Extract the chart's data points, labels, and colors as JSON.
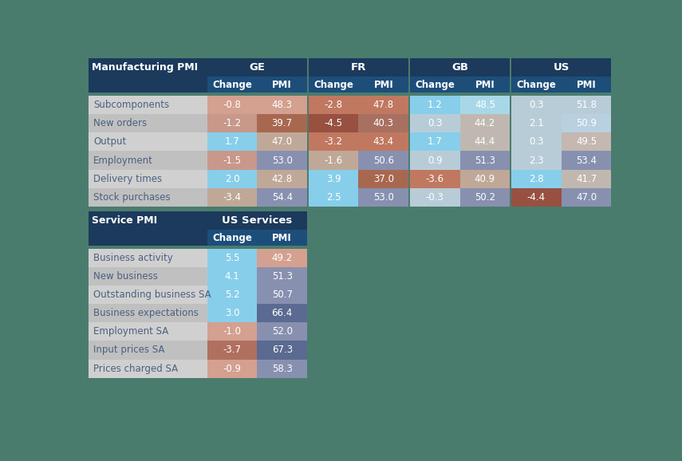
{
  "title1": "Manufacturing PMI",
  "title2": "Service PMI",
  "dark_blue": "#1b3a5c",
  "mid_blue": "#1d4e7a",
  "bg_color": "#4a7c6e",
  "row_label_text": "#4a6080",
  "light_gray": "#d0d0d0",
  "med_gray": "#c0c0c0",
  "mfg_groups": [
    "GE",
    "FR",
    "GB",
    "US"
  ],
  "mfg_rows": [
    {
      "label": "Subcomponents",
      "values": [
        "-0.8",
        "48.3",
        "-2.8",
        "47.8",
        "1.2",
        "48.5",
        "0.3",
        "51.8"
      ]
    },
    {
      "label": "New orders",
      "values": [
        "-1.2",
        "39.7",
        "-4.5",
        "40.3",
        "0.3",
        "44.2",
        "2.1",
        "50.9"
      ]
    },
    {
      "label": "Output",
      "values": [
        "1.7",
        "47.0",
        "-3.2",
        "43.4",
        "1.7",
        "44.4",
        "0.3",
        "49.5"
      ]
    },
    {
      "label": "Employment",
      "values": [
        "-1.5",
        "53.0",
        "-1.6",
        "50.6",
        "0.9",
        "51.3",
        "2.3",
        "53.4"
      ]
    },
    {
      "label": "Delivery times",
      "values": [
        "2.0",
        "42.8",
        "3.9",
        "37.0",
        "-3.6",
        "40.9",
        "2.8",
        "41.7"
      ]
    },
    {
      "label": "Stock purchases",
      "values": [
        "-3.4",
        "54.4",
        "2.5",
        "53.0",
        "-0.3",
        "50.2",
        "-4.4",
        "47.0"
      ]
    }
  ],
  "mfg_cell_colors": [
    [
      "#d4a090",
      "#d4a090",
      "#c07860",
      "#c07860",
      "#87ceeb",
      "#a8d8e8",
      "#b8ccd8",
      "#b8ccd8"
    ],
    [
      "#c8988a",
      "#a86850",
      "#985040",
      "#a87060",
      "#b8ccd8",
      "#c0b8b0",
      "#b8ccd8",
      "#b8d0e0"
    ],
    [
      "#87ceeb",
      "#c0a898",
      "#c07860",
      "#c07860",
      "#87ceeb",
      "#c0b8b0",
      "#b8ccd8",
      "#c4b8b0"
    ],
    [
      "#c8988a",
      "#8890b0",
      "#c0a898",
      "#8890b0",
      "#b8ccd8",
      "#8890b0",
      "#b8ccd8",
      "#8890b0"
    ],
    [
      "#87ceeb",
      "#c0a898",
      "#87ceeb",
      "#a86850",
      "#c07860",
      "#c0a898",
      "#87ceeb",
      "#c0b8b0"
    ],
    [
      "#c0a898",
      "#8890b0",
      "#87ceeb",
      "#8890b0",
      "#b8ccd8",
      "#8890b0",
      "#985040",
      "#8890b0"
    ]
  ],
  "svc_group": "US Services",
  "svc_rows": [
    {
      "label": "Business activity",
      "values": [
        "5.5",
        "49.2"
      ]
    },
    {
      "label": "New business",
      "values": [
        "4.1",
        "51.3"
      ]
    },
    {
      "label": "Outstanding business SA",
      "values": [
        "5.2",
        "50.7"
      ]
    },
    {
      "label": "Business expectations",
      "values": [
        "3.0",
        "66.4"
      ]
    },
    {
      "label": "Employment SA",
      "values": [
        "-1.0",
        "52.0"
      ]
    },
    {
      "label": "Input prices SA",
      "values": [
        "-3.7",
        "67.3"
      ]
    },
    {
      "label": "Prices charged SA",
      "values": [
        "-0.9",
        "58.3"
      ]
    }
  ],
  "svc_cell_colors": [
    [
      "#87ceeb",
      "#d4a090"
    ],
    [
      "#87ceeb",
      "#8890b0"
    ],
    [
      "#87ceeb",
      "#8890b0"
    ],
    [
      "#87ceeb",
      "#5a6a90"
    ],
    [
      "#d4a090",
      "#8890b0"
    ],
    [
      "#b07060",
      "#5a6a90"
    ],
    [
      "#d4a090",
      "#8890b0"
    ]
  ]
}
